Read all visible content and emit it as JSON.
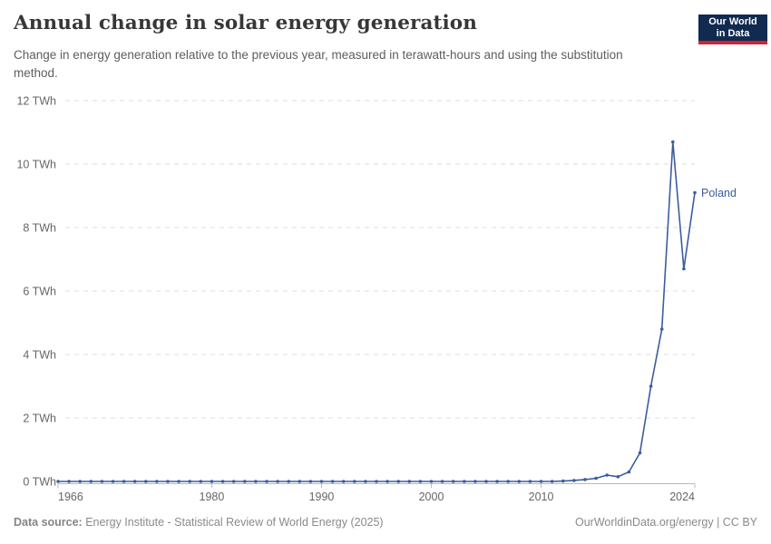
{
  "header": {
    "title": "Annual change in solar energy generation",
    "subtitle": "Change in energy generation relative to the previous year, measured in terawatt-hours and using the substitution method.",
    "logo": {
      "line1": "Our World",
      "line2": "in Data",
      "bg_color": "#102a50",
      "stripe_color": "#cf2336"
    }
  },
  "footer": {
    "source_label": "Data source:",
    "source_text": " Energy Institute - Statistical Review of World Energy (2025)",
    "credit": "OurWorldinData.org/energy | CC BY"
  },
  "chart_data": {
    "type": "line",
    "title": "Annual change in solar energy generation",
    "y_unit": "TWh",
    "xlim": [
      1966,
      2024
    ],
    "ylim": [
      0,
      12
    ],
    "x_ticks": [
      1966,
      1980,
      1990,
      2000,
      2010,
      2024
    ],
    "y_ticks": [
      0,
      2,
      4,
      6,
      8,
      10,
      12
    ],
    "grid": "horizontal-dashed",
    "legend_position": "end-of-line-label",
    "colors": {
      "grid": "#dcdcdc",
      "axis": "#b9b9b9"
    },
    "series": [
      {
        "name": "Poland",
        "color": "#3d5c9e",
        "years": [
          1966,
          1967,
          1968,
          1969,
          1970,
          1971,
          1972,
          1973,
          1974,
          1975,
          1976,
          1977,
          1978,
          1979,
          1980,
          1981,
          1982,
          1983,
          1984,
          1985,
          1986,
          1987,
          1988,
          1989,
          1990,
          1991,
          1992,
          1993,
          1994,
          1995,
          1996,
          1997,
          1998,
          1999,
          2000,
          2001,
          2002,
          2003,
          2004,
          2005,
          2006,
          2007,
          2008,
          2009,
          2010,
          2011,
          2012,
          2013,
          2014,
          2015,
          2016,
          2017,
          2018,
          2019,
          2020,
          2021,
          2022,
          2023,
          2024
        ],
        "values": [
          0,
          0,
          0,
          0,
          0,
          0,
          0,
          0,
          0,
          0,
          0,
          0,
          0,
          0,
          0,
          0,
          0,
          0,
          0,
          0,
          0,
          0,
          0,
          0,
          0,
          0,
          0,
          0,
          0,
          0,
          0,
          0,
          0,
          0,
          0,
          0,
          0,
          0,
          0,
          0,
          0,
          0,
          0,
          0,
          0,
          0,
          0.01,
          0.03,
          0.06,
          0.1,
          0.2,
          0.15,
          0.3,
          0.9,
          3,
          4.8,
          10.7,
          6.7,
          9.1
        ]
      }
    ]
  }
}
